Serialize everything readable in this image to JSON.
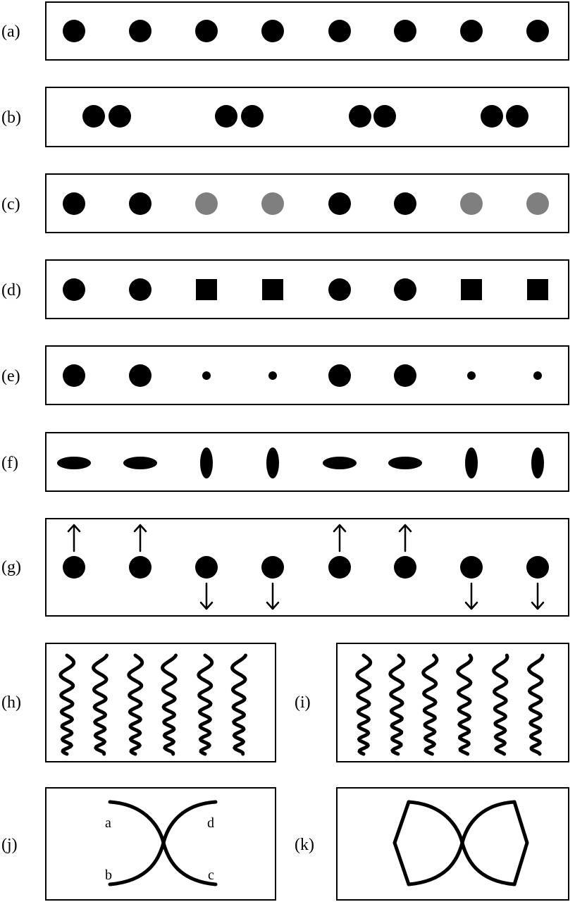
{
  "colors": {
    "black": "#000000",
    "gray": "#7f7f7f"
  },
  "panels": [
    {
      "key": "a",
      "label": "(a)",
      "items": [
        {
          "shape": "circle",
          "color": "black"
        },
        {
          "shape": "circle",
          "color": "black"
        },
        {
          "shape": "circle",
          "color": "black"
        },
        {
          "shape": "circle",
          "color": "black"
        },
        {
          "shape": "circle",
          "color": "black"
        },
        {
          "shape": "circle",
          "color": "black"
        },
        {
          "shape": "circle",
          "color": "black"
        },
        {
          "shape": "circle",
          "color": "black"
        }
      ]
    },
    {
      "key": "b",
      "label": "(b)",
      "items": [
        {
          "shape": "circle",
          "color": "black"
        },
        {
          "shape": "circle",
          "color": "black"
        },
        {
          "shape": "circle",
          "color": "black"
        },
        {
          "shape": "circle",
          "color": "black"
        },
        {
          "shape": "circle",
          "color": "black"
        },
        {
          "shape": "circle",
          "color": "black"
        },
        {
          "shape": "circle",
          "color": "black"
        },
        {
          "shape": "circle",
          "color": "black"
        }
      ],
      "grouping": "pairs"
    },
    {
      "key": "c",
      "label": "(c)",
      "items": [
        {
          "shape": "circle",
          "color": "black"
        },
        {
          "shape": "circle",
          "color": "black"
        },
        {
          "shape": "circle",
          "color": "gray"
        },
        {
          "shape": "circle",
          "color": "gray"
        },
        {
          "shape": "circle",
          "color": "black"
        },
        {
          "shape": "circle",
          "color": "black"
        },
        {
          "shape": "circle",
          "color": "gray"
        },
        {
          "shape": "circle",
          "color": "gray"
        }
      ]
    },
    {
      "key": "d",
      "label": "(d)",
      "items": [
        {
          "shape": "circle",
          "color": "black"
        },
        {
          "shape": "circle",
          "color": "black"
        },
        {
          "shape": "square",
          "color": "black"
        },
        {
          "shape": "square",
          "color": "black"
        },
        {
          "shape": "circle",
          "color": "black"
        },
        {
          "shape": "circle",
          "color": "black"
        },
        {
          "shape": "square",
          "color": "black"
        },
        {
          "shape": "square",
          "color": "black"
        }
      ]
    },
    {
      "key": "e",
      "label": "(e)",
      "items": [
        {
          "shape": "circle",
          "size": "large"
        },
        {
          "shape": "circle",
          "size": "large"
        },
        {
          "shape": "circle",
          "size": "small"
        },
        {
          "shape": "circle",
          "size": "small"
        },
        {
          "shape": "circle",
          "size": "large"
        },
        {
          "shape": "circle",
          "size": "large"
        },
        {
          "shape": "circle",
          "size": "small"
        },
        {
          "shape": "circle",
          "size": "small"
        }
      ]
    },
    {
      "key": "f",
      "label": "(f)",
      "items": [
        {
          "shape": "ellipse",
          "orientation": "horizontal"
        },
        {
          "shape": "ellipse",
          "orientation": "horizontal"
        },
        {
          "shape": "ellipse",
          "orientation": "vertical"
        },
        {
          "shape": "ellipse",
          "orientation": "vertical"
        },
        {
          "shape": "ellipse",
          "orientation": "horizontal"
        },
        {
          "shape": "ellipse",
          "orientation": "horizontal"
        },
        {
          "shape": "ellipse",
          "orientation": "vertical"
        },
        {
          "shape": "ellipse",
          "orientation": "vertical"
        }
      ]
    },
    {
      "key": "g",
      "label": "(g)",
      "items": [
        {
          "shape": "circle",
          "motion": "up"
        },
        {
          "shape": "circle",
          "motion": "up"
        },
        {
          "shape": "circle",
          "motion": "down"
        },
        {
          "shape": "circle",
          "motion": "down"
        },
        {
          "shape": "circle",
          "motion": "up"
        },
        {
          "shape": "circle",
          "motion": "up"
        },
        {
          "shape": "circle",
          "motion": "down"
        },
        {
          "shape": "circle",
          "motion": "down"
        }
      ]
    },
    {
      "key": "h",
      "label": "(h)",
      "lines": 6,
      "phases": "alternating"
    },
    {
      "key": "i",
      "label": "(i)",
      "lines": 6,
      "phases": "uniform"
    },
    {
      "key": "j",
      "label": "(j)",
      "point_labels": [
        "a",
        "d",
        "b",
        "c"
      ],
      "figure": "crossing-curves"
    },
    {
      "key": "k",
      "label": "(k)",
      "figure": "closed-crossing-curves"
    }
  ]
}
